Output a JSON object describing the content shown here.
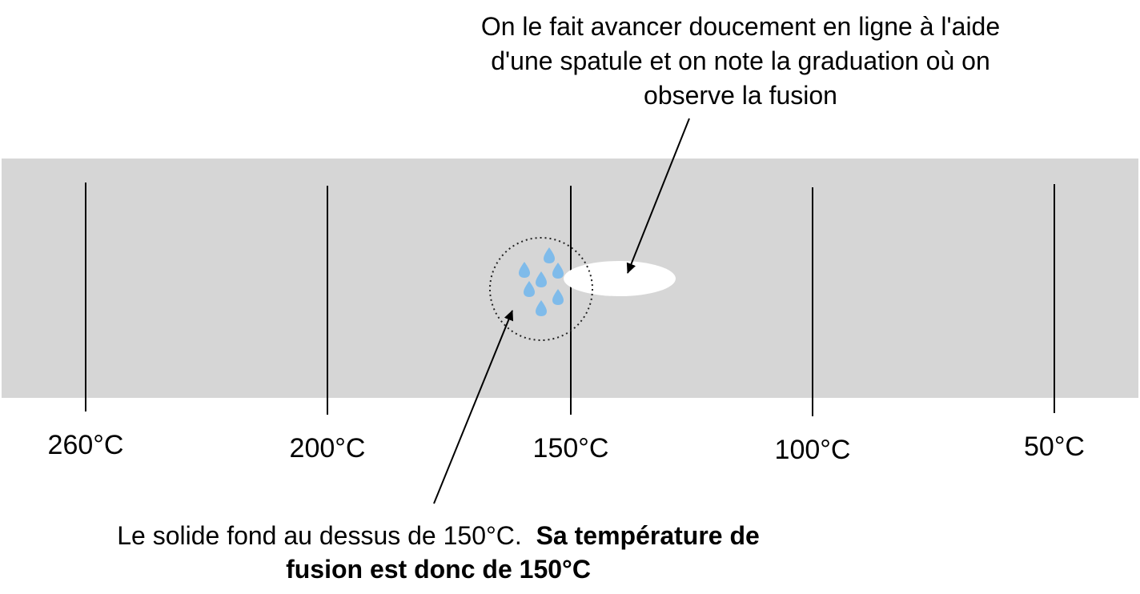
{
  "top_note": {
    "line1": "On le fait avancer doucement en ligne à l'aide",
    "line2": "d'une spatule et on note la graduation où on",
    "line3": "observe la fusion"
  },
  "bottom_note": {
    "normal": "Le solide fond au dessus de 150°C.  ",
    "bold_line1": "Sa température de",
    "bold_line2": "fusion est donc de 150°C"
  },
  "scale": {
    "labels": [
      "260°C",
      "200°C",
      "150°C",
      "100°C",
      "50°C"
    ]
  },
  "colors": {
    "bench": "#d6d6d6",
    "droplet": "#7fbbea",
    "solid": "#ffffff",
    "line": "#000000"
  },
  "icons": {
    "droplet": "water-drop-icon"
  }
}
